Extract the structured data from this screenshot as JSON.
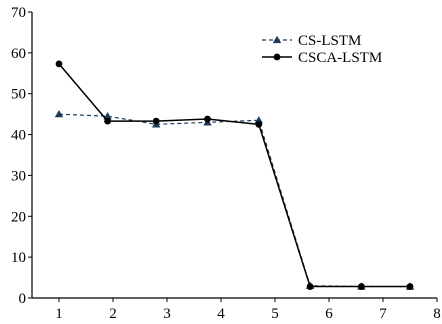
{
  "chart_data": {
    "type": "line",
    "title": "",
    "xlabel": "",
    "ylabel": "",
    "xlim": [
      0.5,
      8
    ],
    "ylim": [
      0,
      70
    ],
    "x_ticks": [
      1,
      2,
      3,
      4,
      5,
      6,
      7,
      8
    ],
    "y_ticks": [
      0,
      10,
      20,
      30,
      40,
      50,
      60,
      70
    ],
    "grid": false,
    "legend_position": "top-right",
    "series": [
      {
        "name": "CS-LSTM",
        "style": "dashed",
        "marker": "triangle",
        "color": "#1f3b5a",
        "x": [
          1,
          1.9,
          2.8,
          3.75,
          4.7,
          5.65,
          6.6,
          7.5
        ],
        "y": [
          45,
          44.5,
          42.5,
          43,
          43.5,
          3,
          2.8,
          2.8
        ]
      },
      {
        "name": "CSCA-LSTM",
        "style": "solid",
        "marker": "circle",
        "color": "#000000",
        "x": [
          1,
          1.9,
          2.8,
          3.75,
          4.7,
          5.65,
          6.6,
          7.5
        ],
        "y": [
          57.3,
          43.3,
          43.3,
          43.8,
          42.5,
          2.8,
          2.8,
          2.8
        ]
      }
    ]
  }
}
